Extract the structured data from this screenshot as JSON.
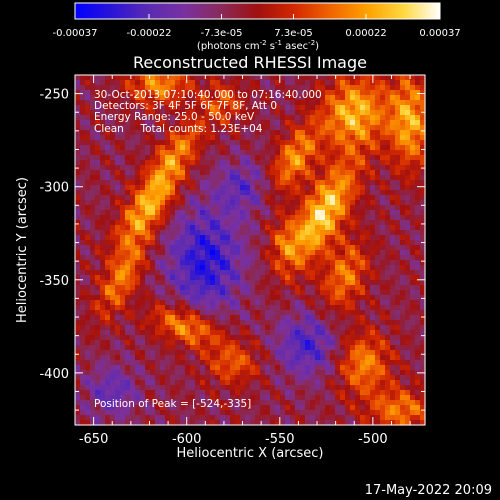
{
  "chart_data": {
    "type": "heatmap",
    "title": "Reconstructed RHESSI Image",
    "xlabel": "Heliocentric X (arcsec)",
    "ylabel": "Heliocentric Y (arcsec)",
    "xlim": [
      -660,
      -472
    ],
    "ylim": [
      -428,
      -240
    ],
    "x_ticks": [
      -650,
      -600,
      -550,
      -500
    ],
    "y_ticks": [
      -250,
      -300,
      -350,
      -400
    ],
    "colorbar": {
      "min": -0.00037,
      "max": 0.00037,
      "tick_values": [
        -0.00037,
        -0.00022,
        -7.3e-05,
        7.3e-05,
        0.00022,
        0.00037
      ],
      "tick_labels": [
        "-0.00037",
        "-0.00022",
        "-7.3e-05",
        "7.3e-05",
        "0.00022",
        "0.00037"
      ],
      "unit_prefix": "(photons cm",
      "unit_exp1": "-2",
      "unit_mid": " s",
      "unit_exp2": "-1",
      "unit_mid2": " asec",
      "unit_exp3": "-2",
      "unit_suffix": ")",
      "colors": [
        "#0000ff",
        "#2a14d6",
        "#5a2ab4",
        "#7a30a0",
        "#8a2a5a",
        "#a01010",
        "#d22800",
        "#f06400",
        "#ffa000",
        "#ffd840",
        "#ffffff"
      ]
    },
    "peak": [
      -524,
      -335
    ],
    "sources": [
      {
        "x": -620,
        "y": -310,
        "amp": 0.0003,
        "sx": 7,
        "sy": 20,
        "rot": -35
      },
      {
        "x": -605,
        "y": -280,
        "amp": 0.00018,
        "sx": 6,
        "sy": 16,
        "rot": -40
      },
      {
        "x": -527,
        "y": -315,
        "amp": 0.00035,
        "sx": 8,
        "sy": 22,
        "rot": -30
      },
      {
        "x": -542,
        "y": -285,
        "amp": 0.00025,
        "sx": 7,
        "sy": 14,
        "rot": -30
      },
      {
        "x": -510,
        "y": -260,
        "amp": 0.0003,
        "sx": 12,
        "sy": 14,
        "rot": -20
      },
      {
        "x": -480,
        "y": -265,
        "amp": 0.00028,
        "sx": 8,
        "sy": 18,
        "rot": 0
      },
      {
        "x": -515,
        "y": -348,
        "amp": 0.00022,
        "sx": 8,
        "sy": 14,
        "rot": -20
      },
      {
        "x": -505,
        "y": -395,
        "amp": 0.00024,
        "sx": 10,
        "sy": 12,
        "rot": 0
      },
      {
        "x": -485,
        "y": -420,
        "amp": 0.00022,
        "sx": 12,
        "sy": 8,
        "rot": 0
      },
      {
        "x": -600,
        "y": -375,
        "amp": 0.00027,
        "sx": 14,
        "sy": 7,
        "rot": -20
      },
      {
        "x": -635,
        "y": -350,
        "amp": 0.00022,
        "sx": 6,
        "sy": 16,
        "rot": -30
      },
      {
        "x": -615,
        "y": -245,
        "amp": 0.00024,
        "sx": 12,
        "sy": 8,
        "rot": 0
      },
      {
        "x": -580,
        "y": -255,
        "amp": 0.00016,
        "sx": 8,
        "sy": 8,
        "rot": 0
      },
      {
        "x": -575,
        "y": -395,
        "amp": 0.00018,
        "sx": 10,
        "sy": 8,
        "rot": 0
      },
      {
        "x": -548,
        "y": -330,
        "amp": 0.00014,
        "sx": 6,
        "sy": 10,
        "rot": 0
      },
      {
        "x": -590,
        "y": -340,
        "amp": -0.00025,
        "sx": 14,
        "sy": 20,
        "rot": 0
      },
      {
        "x": -570,
        "y": -300,
        "amp": -0.00015,
        "sx": 10,
        "sy": 10,
        "rot": 0
      },
      {
        "x": -535,
        "y": -385,
        "amp": -0.0002,
        "sx": 12,
        "sy": 12,
        "rot": 0
      },
      {
        "x": -640,
        "y": -410,
        "amp": -0.00015,
        "sx": 10,
        "sy": 10,
        "rot": 0
      }
    ]
  },
  "overlay": {
    "time_range": "30-Oct-2013 07:10:40.000 to 07:16:40.000",
    "detectors": "Detectors: 3F 4F 5F 6F 7F 8F, Att 0",
    "energy": "Energy Range: 25.0 - 50.0 keV",
    "clean": "Clean     Total counts: 1.23E+04",
    "peak_label": "Position of Peak = [-524,-335]"
  },
  "footer": {
    "timestamp": "17-May-2022 20:09"
  }
}
